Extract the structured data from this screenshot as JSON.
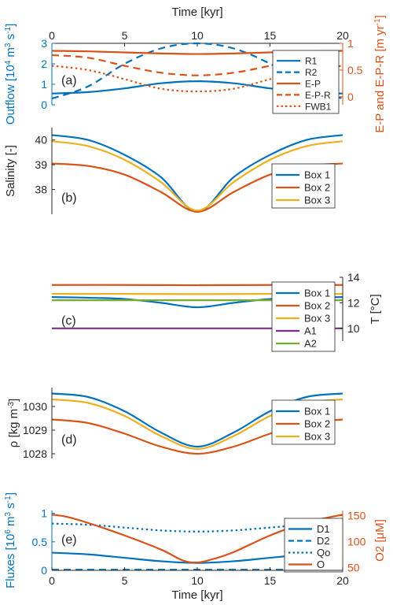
{
  "colors": {
    "blue": "#0072BD",
    "orange": "#D95319",
    "yellow": "#EDB120",
    "purple": "#7E2F8E",
    "green": "#77AC30",
    "axis": "#262626"
  },
  "shared": {
    "top_xlabel": "Time [kyr]",
    "bottom_xlabel": "Time [kyr]",
    "xlim": [
      0,
      20
    ],
    "xticks": [
      0,
      5,
      10,
      15,
      20
    ]
  },
  "chart_data": [
    {
      "type": "line",
      "panel_label": "(a)",
      "left_ylabel": "Outflow [10^4 m^3 s^-1]",
      "right_ylabel": "E-P and E-P-R [m yr^-1]",
      "left_ylim": [
        0,
        3
      ],
      "left_yticks": [
        0,
        1,
        2,
        3
      ],
      "right_ylim": [
        -0.15,
        1.0
      ],
      "right_yticks": [
        0,
        0.5,
        1
      ],
      "right_yticklabels": [
        "0",
        "0.5",
        "1"
      ],
      "legend_position": "right",
      "series": [
        {
          "name": "R1",
          "axis": "left",
          "style": "solid",
          "color": "blue",
          "x": [
            0,
            2.5,
            5,
            7.5,
            10,
            12.5,
            15,
            17.5,
            20
          ],
          "y": [
            0.55,
            0.62,
            0.8,
            1.05,
            1.15,
            1.05,
            0.8,
            0.62,
            0.55
          ]
        },
        {
          "name": "R2",
          "axis": "left",
          "style": "dashed",
          "color": "blue",
          "x": [
            0,
            2.5,
            5,
            7.5,
            10,
            12.5,
            15,
            17.5,
            20
          ],
          "y": [
            0.3,
            0.9,
            2.0,
            2.75,
            3.0,
            2.75,
            2.0,
            0.9,
            0.3
          ]
        },
        {
          "name": "E-P",
          "axis": "right",
          "style": "solid",
          "color": "orange",
          "x": [
            0,
            2.5,
            5,
            7.5,
            10,
            12.5,
            15,
            17.5,
            20
          ],
          "y": [
            0.86,
            0.85,
            0.83,
            0.81,
            0.8,
            0.81,
            0.83,
            0.85,
            0.86
          ]
        },
        {
          "name": "E-P-R",
          "axis": "right",
          "style": "dashed",
          "color": "orange",
          "x": [
            0,
            2.5,
            5,
            7.5,
            10,
            12.5,
            15,
            17.5,
            20
          ],
          "y": [
            0.78,
            0.73,
            0.58,
            0.45,
            0.4,
            0.45,
            0.58,
            0.73,
            0.78
          ]
        },
        {
          "name": "FWB1",
          "axis": "right",
          "style": "dotted",
          "color": "orange",
          "x": [
            0,
            2.5,
            5,
            7.5,
            10,
            12.5,
            15,
            17.5,
            20
          ],
          "y": [
            0.58,
            0.5,
            0.33,
            0.15,
            0.1,
            0.15,
            0.33,
            0.5,
            0.58
          ]
        }
      ]
    },
    {
      "type": "line",
      "panel_label": "(b)",
      "left_ylabel": "Salinity [-]",
      "left_ylim": [
        37,
        40.5
      ],
      "left_yticks": [
        38,
        39,
        40
      ],
      "legend_position": "right",
      "series": [
        {
          "name": "Box 1",
          "color": "blue",
          "x": [
            0,
            2.5,
            5,
            7.5,
            10,
            12.5,
            15,
            17.5,
            20
          ],
          "y": [
            40.2,
            40.0,
            39.4,
            38.5,
            37.1,
            38.5,
            39.4,
            40.0,
            40.2
          ]
        },
        {
          "name": "Box 2",
          "color": "orange",
          "x": [
            0,
            2.5,
            5,
            7.5,
            10,
            12.5,
            15,
            17.5,
            20
          ],
          "y": [
            39.05,
            38.95,
            38.6,
            37.9,
            37.1,
            37.9,
            38.6,
            38.95,
            39.05
          ]
        },
        {
          "name": "Box 3",
          "color": "yellow",
          "x": [
            0,
            2.5,
            5,
            7.5,
            10,
            12.5,
            15,
            17.5,
            20
          ],
          "y": [
            39.95,
            39.75,
            39.2,
            38.3,
            37.15,
            38.3,
            39.2,
            39.75,
            39.95
          ]
        }
      ]
    },
    {
      "type": "line",
      "panel_label": "(c)",
      "right_ylabel": "T [°C]",
      "right_ylim": [
        9,
        14
      ],
      "right_yticks": [
        10,
        12,
        14
      ],
      "legend_position": "right",
      "series": [
        {
          "name": "Box 1",
          "color": "blue",
          "x": [
            0,
            2.5,
            5,
            7.5,
            10,
            12.5,
            15,
            17.5,
            20
          ],
          "y": [
            12.45,
            12.4,
            12.3,
            12.0,
            11.65,
            12.0,
            12.3,
            12.4,
            12.45
          ]
        },
        {
          "name": "Box 2",
          "color": "orange",
          "x": [
            0,
            5,
            10,
            15,
            20
          ],
          "y": [
            13.4,
            13.4,
            13.38,
            13.4,
            13.4
          ]
        },
        {
          "name": "Box 3",
          "color": "yellow",
          "x": [
            0,
            5,
            10,
            15,
            20
          ],
          "y": [
            12.7,
            12.7,
            12.68,
            12.7,
            12.7
          ]
        },
        {
          "name": "A1",
          "color": "purple",
          "x": [
            0,
            20
          ],
          "y": [
            10.0,
            10.0
          ]
        },
        {
          "name": "A2",
          "color": "green",
          "x": [
            0,
            20
          ],
          "y": [
            12.2,
            12.2
          ]
        }
      ]
    },
    {
      "type": "line",
      "panel_label": "(d)",
      "left_ylabel": "ρ [kg m^-3]",
      "left_ylim": [
        1027.8,
        1030.8
      ],
      "left_yticks": [
        1028,
        1029,
        1030
      ],
      "legend_position": "right",
      "series": [
        {
          "name": "Box 1",
          "color": "blue",
          "x": [
            0,
            2.5,
            5,
            7.5,
            10,
            12.5,
            15,
            17.5,
            20
          ],
          "y": [
            1030.55,
            1030.4,
            1029.8,
            1028.9,
            1028.3,
            1028.9,
            1029.8,
            1030.4,
            1030.55
          ]
        },
        {
          "name": "Box 2",
          "color": "orange",
          "x": [
            0,
            2.5,
            5,
            7.5,
            10,
            12.5,
            15,
            17.5,
            20
          ],
          "y": [
            1029.45,
            1029.3,
            1028.85,
            1028.3,
            1028.0,
            1028.3,
            1028.85,
            1029.3,
            1029.45
          ]
        },
        {
          "name": "Box 3",
          "color": "yellow",
          "x": [
            0,
            2.5,
            5,
            7.5,
            10,
            12.5,
            15,
            17.5,
            20
          ],
          "y": [
            1030.3,
            1030.15,
            1029.6,
            1028.75,
            1028.2,
            1028.75,
            1029.6,
            1030.15,
            1030.3
          ]
        }
      ]
    },
    {
      "type": "line",
      "panel_label": "(e)",
      "left_ylabel": "Fluxes [10^6 m^3 s^-1]",
      "right_ylabel": "O2 [μM]",
      "left_ylim": [
        0,
        1.05
      ],
      "left_yticks": [
        0,
        0.5,
        1
      ],
      "left_yticklabels": [
        "0",
        "0.5",
        "1"
      ],
      "right_ylim": [
        45,
        160
      ],
      "right_yticks": [
        50,
        100,
        150
      ],
      "legend_position": "right",
      "series": [
        {
          "name": "D1",
          "axis": "left",
          "style": "solid",
          "color": "blue",
          "x": [
            0,
            2.5,
            5,
            7.5,
            10,
            12.5,
            15,
            17.5,
            20
          ],
          "y": [
            0.31,
            0.28,
            0.22,
            0.16,
            0.13,
            0.16,
            0.22,
            0.28,
            0.31
          ]
        },
        {
          "name": "D2",
          "axis": "left",
          "style": "dashed",
          "color": "blue",
          "x": [
            0,
            20
          ],
          "y": [
            0.01,
            0.01
          ]
        },
        {
          "name": "Qo",
          "axis": "left",
          "style": "dotted",
          "color": "blue",
          "x": [
            0,
            2.5,
            5,
            7.5,
            10,
            12.5,
            15,
            17.5,
            20
          ],
          "y": [
            0.82,
            0.8,
            0.75,
            0.7,
            0.68,
            0.7,
            0.75,
            0.8,
            0.82
          ]
        },
        {
          "name": "O",
          "axis": "right",
          "style": "solid",
          "color": "orange",
          "x": [
            0,
            1,
            2.5,
            5,
            7.5,
            9,
            10,
            11,
            12.5,
            15,
            17.5,
            20
          ],
          "y": [
            152,
            148,
            136,
            112,
            85,
            64,
            60,
            66,
            80,
            112,
            137,
            152
          ]
        }
      ]
    }
  ]
}
